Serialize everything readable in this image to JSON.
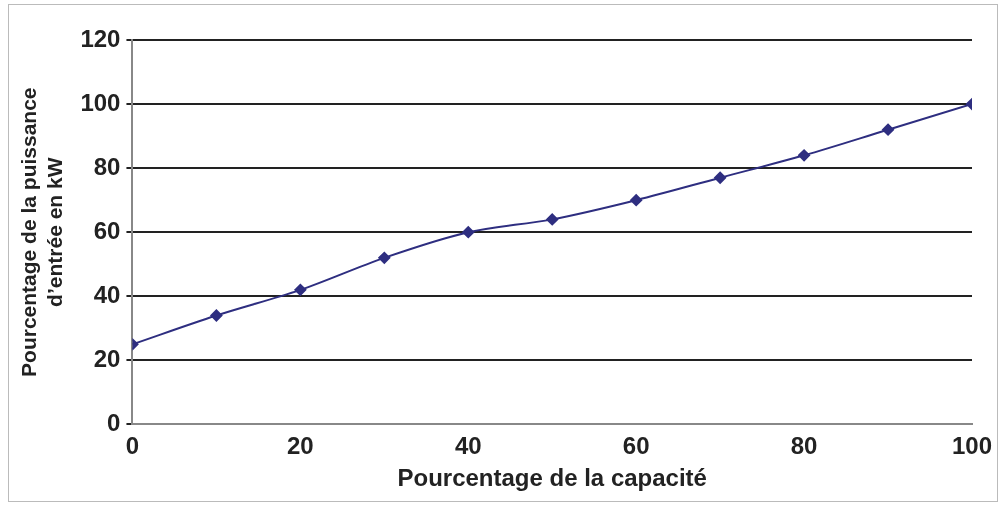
{
  "chart_data": {
    "type": "line",
    "xlabel": "Pourcentage de la capacité",
    "ylabel": "Pourcentage de la puissance\nd’entrée en kW",
    "x": [
      0,
      10,
      20,
      30,
      40,
      50,
      60,
      70,
      80,
      90,
      100
    ],
    "series": [
      {
        "color": "#2e2e80",
        "values": [
          25,
          34,
          42,
          52,
          60,
          64,
          70,
          77,
          84,
          92,
          100
        ]
      }
    ],
    "xlim": [
      0,
      100
    ],
    "xticks": [
      0,
      20,
      40,
      60,
      80,
      100
    ],
    "ylim": [
      0,
      120
    ],
    "yticks": [
      0,
      20,
      40,
      60,
      80,
      100,
      120
    ],
    "grid": "y",
    "legend": false,
    "marker": "diamond",
    "line_style": "solid"
  }
}
